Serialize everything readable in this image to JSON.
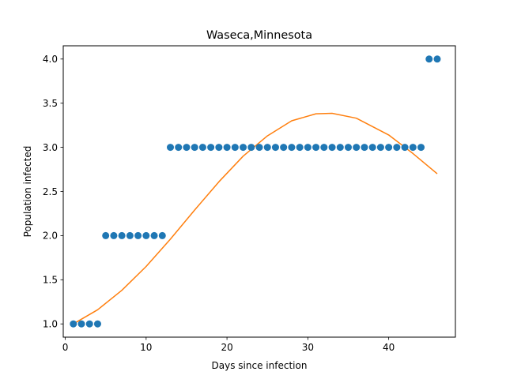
{
  "chart_data": {
    "type": "scatter",
    "title": "Waseca,Minnesota",
    "xlabel": "Days since infection",
    "ylabel": "Population infected",
    "xlim": [
      -0.25,
      48.25
    ],
    "ylim": [
      0.85,
      4.15
    ],
    "xticks": [
      0,
      10,
      20,
      30,
      40
    ],
    "xtick_labels": [
      "0",
      "10",
      "20",
      "30",
      "40"
    ],
    "yticks": [
      1.0,
      1.5,
      2.0,
      2.5,
      3.0,
      3.5,
      4.0
    ],
    "ytick_labels": [
      "1.0",
      "1.5",
      "2.0",
      "2.5",
      "3.0",
      "3.5",
      "4.0"
    ],
    "grid": false,
    "series": [
      {
        "kind": "scatter",
        "color": "#1f77b4",
        "x": [
          1,
          2,
          3,
          4,
          5,
          6,
          7,
          8,
          9,
          10,
          11,
          12,
          13,
          14,
          15,
          16,
          17,
          18,
          19,
          20,
          21,
          22,
          23,
          24,
          25,
          26,
          27,
          28,
          29,
          30,
          31,
          32,
          33,
          34,
          35,
          36,
          37,
          38,
          39,
          40,
          41,
          42,
          43,
          44,
          45,
          46
        ],
        "y": [
          1,
          1,
          1,
          1,
          2,
          2,
          2,
          2,
          2,
          2,
          2,
          2,
          3,
          3,
          3,
          3,
          3,
          3,
          3,
          3,
          3,
          3,
          3,
          3,
          3,
          3,
          3,
          3,
          3,
          3,
          3,
          3,
          3,
          3,
          3,
          3,
          3,
          3,
          3,
          3,
          3,
          3,
          3,
          3,
          4,
          4
        ]
      },
      {
        "kind": "line",
        "color": "#ff7f0e",
        "x": [
          1,
          4,
          7,
          10,
          13,
          16,
          19,
          22,
          25,
          28,
          31,
          33,
          36,
          40,
          43,
          46
        ],
        "y": [
          1.0,
          1.16,
          1.38,
          1.65,
          1.96,
          2.29,
          2.61,
          2.9,
          3.13,
          3.3,
          3.38,
          3.385,
          3.33,
          3.14,
          2.93,
          2.7
        ]
      }
    ]
  }
}
